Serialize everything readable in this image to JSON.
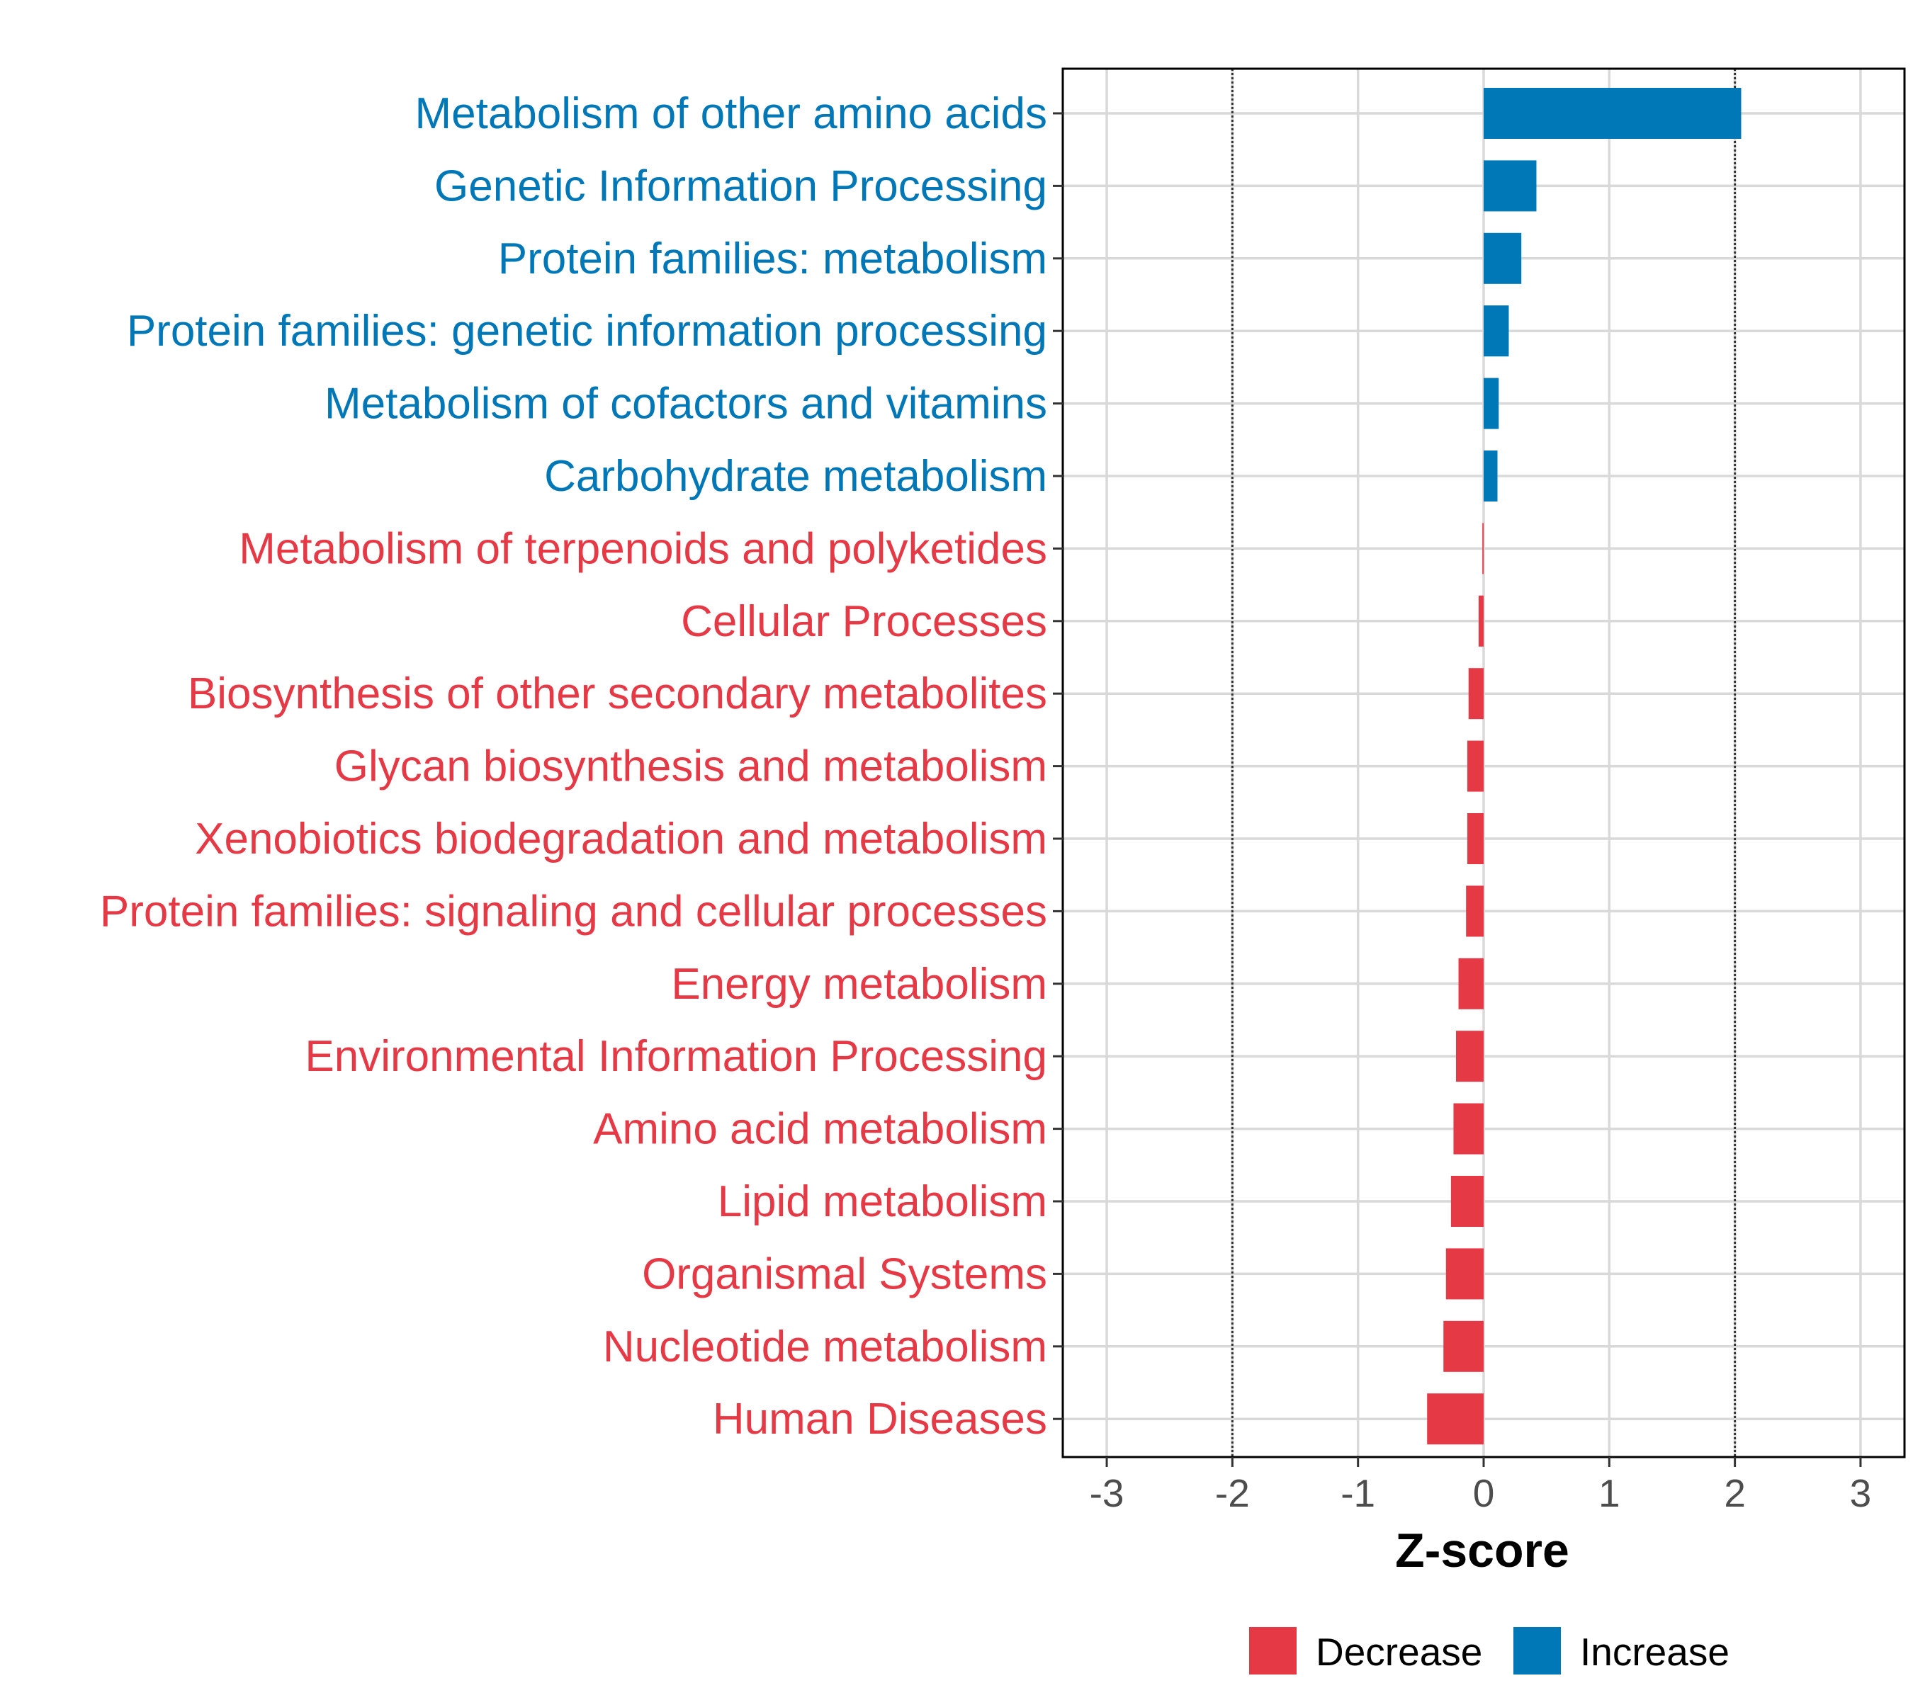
{
  "chart_data": {
    "type": "bar",
    "orientation": "horizontal",
    "title": "",
    "xlabel": "Z-score",
    "ylabel": "",
    "xlim": [
      -3.35,
      3.35
    ],
    "x_ticks": [
      -3,
      -2,
      -1,
      0,
      1,
      2,
      3
    ],
    "threshold_lines": [
      -2,
      2
    ],
    "grid": true,
    "categories": [
      "Metabolism of other amino acids",
      "Genetic Information Processing",
      "Protein families: metabolism",
      "Protein families: genetic information processing",
      "Metabolism of cofactors and vitamins",
      "Carbohydrate metabolism",
      "Metabolism of terpenoids and polyketides",
      "Cellular Processes",
      "Biosynthesis of other secondary metabolites",
      "Glycan biosynthesis and metabolism",
      "Xenobiotics biodegradation and metabolism",
      "Protein families: signaling and cellular processes",
      "Energy metabolism",
      "Environmental Information Processing",
      "Amino acid metabolism",
      "Lipid metabolism",
      "Organismal Systems",
      "Nucleotide metabolism",
      "Human Diseases"
    ],
    "values": [
      2.05,
      0.42,
      0.3,
      0.2,
      0.12,
      0.11,
      -0.01,
      -0.04,
      -0.12,
      -0.13,
      -0.13,
      -0.14,
      -0.2,
      -0.22,
      -0.24,
      -0.26,
      -0.3,
      -0.32,
      -0.45
    ],
    "groups": [
      "Increase",
      "Increase",
      "Increase",
      "Increase",
      "Increase",
      "Increase",
      "Decrease",
      "Decrease",
      "Decrease",
      "Decrease",
      "Decrease",
      "Decrease",
      "Decrease",
      "Decrease",
      "Decrease",
      "Decrease",
      "Decrease",
      "Decrease",
      "Decrease"
    ],
    "legend": {
      "position": "bottom",
      "entries": [
        {
          "label": "Decrease",
          "color": "#E63946"
        },
        {
          "label": "Increase",
          "color": "#0077B6"
        }
      ]
    },
    "colors": {
      "Decrease": "#E63946",
      "Increase": "#0077B6"
    }
  }
}
